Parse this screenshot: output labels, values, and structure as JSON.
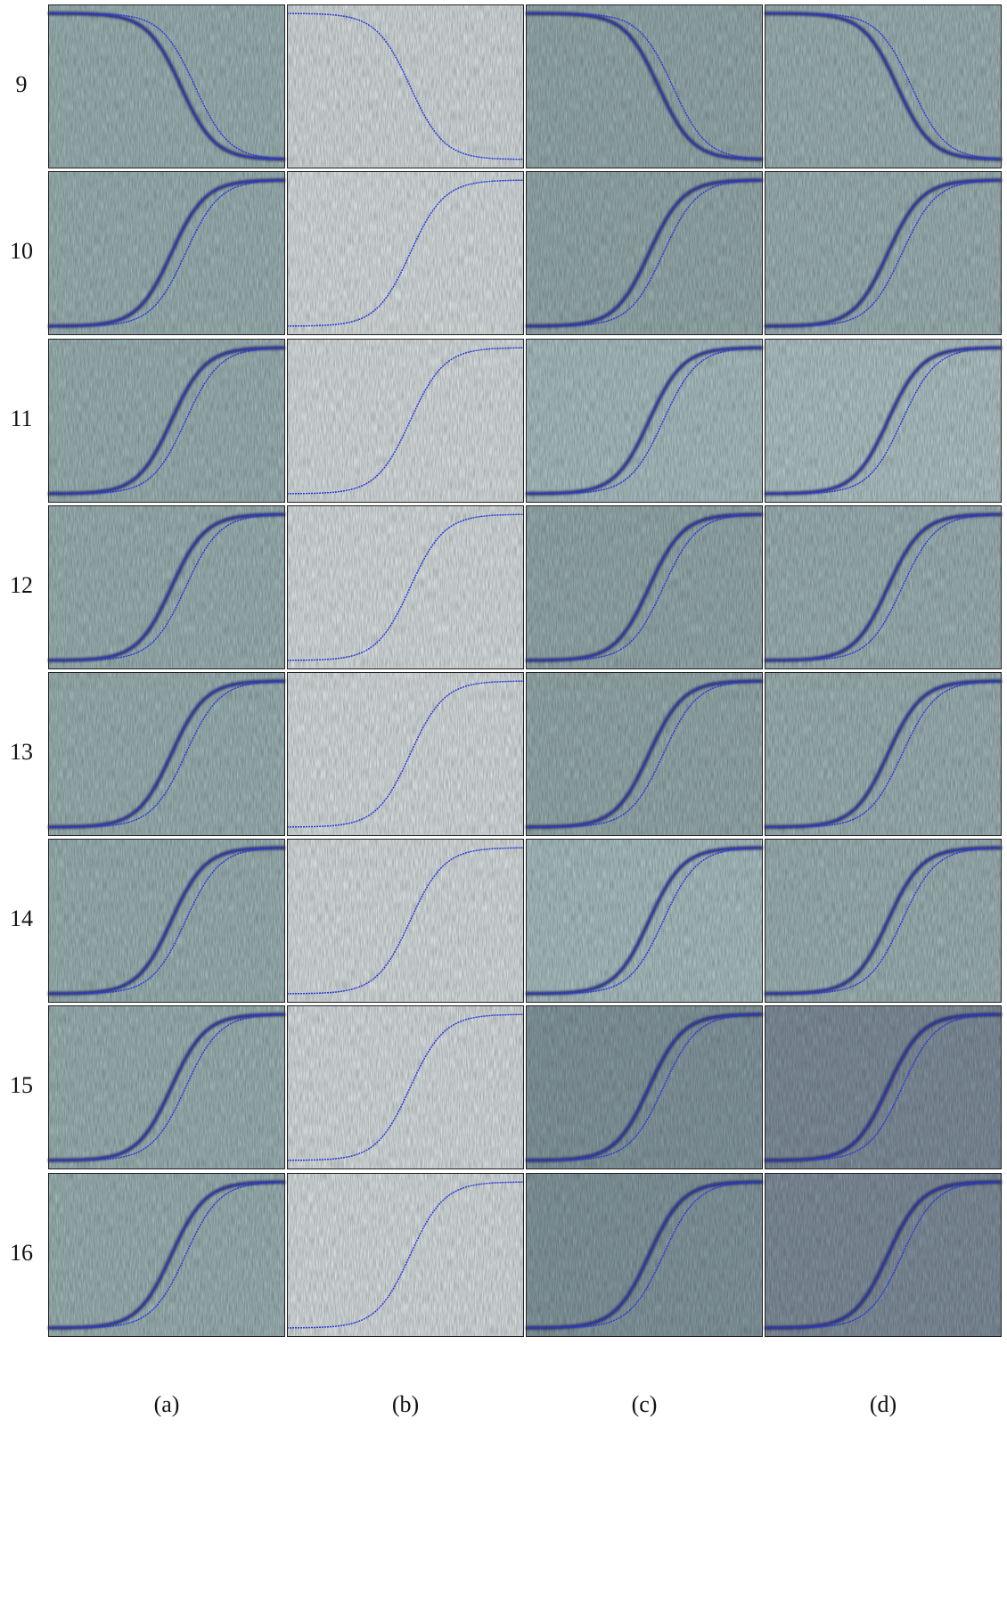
{
  "rows": [
    "9",
    "10",
    "11",
    "12",
    "13",
    "14",
    "15",
    "16"
  ],
  "columns": [
    "(a)",
    "(b)",
    "(c)",
    "(d)"
  ]
}
